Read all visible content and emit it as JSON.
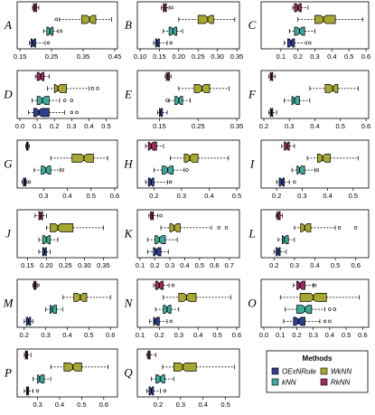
{
  "colors": {
    "RkNN": "#9b2d5e",
    "WkNN": "#a7a632",
    "kNN": "#3ea89a",
    "OExNRule": "#2e3f90"
  },
  "legend": {
    "title": "Methods",
    "items": [
      {
        "method": "OExNRule",
        "label": "OExNRule"
      },
      {
        "method": "WkNN",
        "label": "WkNN"
      },
      {
        "method": "kNN",
        "label": "kNN"
      },
      {
        "method": "RkNN",
        "label": "RkNN"
      }
    ]
  },
  "chart_data": {
    "type": "boxplot",
    "methods_order_top_to_bottom": [
      "RkNN",
      "WkNN",
      "kNN",
      "OExNRule"
    ],
    "panels": [
      {
        "label": "A",
        "xlim": [
          0.15,
          0.45
        ],
        "ticks": [
          "0.15",
          "0.25",
          "0.35",
          "0.45"
        ],
        "boxes": [
          {
            "method": "RkNN",
            "min": 0.19,
            "q1": 0.193,
            "median": 0.197,
            "q3": 0.203,
            "max": 0.21,
            "outliers": []
          },
          {
            "method": "WkNN",
            "min": 0.275,
            "q1": 0.345,
            "median": 0.37,
            "q3": 0.39,
            "max": 0.44,
            "outliers": [
              0.265
            ]
          },
          {
            "method": "kNN",
            "min": 0.225,
            "q1": 0.235,
            "median": 0.245,
            "q3": 0.255,
            "max": 0.27,
            "outliers": [
              0.28
            ]
          },
          {
            "method": "OExNRule",
            "min": 0.18,
            "q1": 0.185,
            "median": 0.192,
            "q3": 0.2,
            "max": 0.23,
            "outliers": [
              0.24
            ]
          }
        ]
      },
      {
        "label": "B",
        "xlim": [
          0.1,
          0.35
        ],
        "ticks": [
          "0.10",
          "0.15",
          "0.20",
          "0.25",
          "0.30",
          "0.35"
        ],
        "boxes": [
          {
            "method": "RkNN",
            "min": 0.155,
            "q1": 0.16,
            "median": 0.164,
            "q3": 0.168,
            "max": 0.175,
            "outliers": [
              0.182
            ]
          },
          {
            "method": "WkNN",
            "min": 0.2,
            "q1": 0.25,
            "median": 0.275,
            "q3": 0.29,
            "max": 0.345,
            "outliers": []
          },
          {
            "method": "kNN",
            "min": 0.16,
            "q1": 0.175,
            "median": 0.185,
            "q3": 0.195,
            "max": 0.21,
            "outliers": []
          },
          {
            "method": "OExNRule",
            "min": 0.135,
            "q1": 0.14,
            "median": 0.145,
            "q3": 0.15,
            "max": 0.17,
            "outliers": [
              0.18
            ]
          }
        ]
      },
      {
        "label": "C",
        "xlim": [
          0.0,
          0.6
        ],
        "ticks": [
          "0.1",
          "0.2",
          "0.3",
          "0.4",
          "0.5",
          "0.6"
        ],
        "boxes": [
          {
            "method": "RkNN",
            "min": 0.17,
            "q1": 0.18,
            "median": 0.2,
            "q3": 0.22,
            "max": 0.26,
            "outliers": []
          },
          {
            "method": "WkNN",
            "min": 0.2,
            "q1": 0.3,
            "median": 0.35,
            "q3": 0.42,
            "max": 0.58,
            "outliers": []
          },
          {
            "method": "kNN",
            "min": 0.15,
            "q1": 0.18,
            "median": 0.21,
            "q3": 0.24,
            "max": 0.3,
            "outliers": []
          },
          {
            "method": "OExNRule",
            "min": 0.12,
            "q1": 0.14,
            "median": 0.16,
            "q3": 0.18,
            "max": 0.25,
            "outliers": [
              0.27
            ]
          }
        ]
      },
      {
        "label": "D",
        "xlim": [
          0.0,
          0.55
        ],
        "ticks": [
          "0.0",
          "0.1",
          "0.2",
          "0.3",
          "0.4",
          "0.5"
        ],
        "boxes": [
          {
            "method": "RkNN",
            "min": 0.09,
            "q1": 0.1,
            "median": 0.12,
            "q3": 0.14,
            "max": 0.17,
            "outliers": []
          },
          {
            "method": "WkNN",
            "min": 0.16,
            "q1": 0.2,
            "median": 0.22,
            "q3": 0.27,
            "max": 0.4,
            "outliers": [
              0.42,
              0.45
            ]
          },
          {
            "method": "kNN",
            "min": 0.07,
            "q1": 0.1,
            "median": 0.13,
            "q3": 0.17,
            "max": 0.23,
            "outliers": [
              0.26,
              0.3
            ]
          },
          {
            "method": "OExNRule",
            "min": 0.05,
            "q1": 0.08,
            "median": 0.11,
            "q3": 0.17,
            "max": 0.26,
            "outliers": [
              0.3,
              0.33
            ]
          }
        ]
      },
      {
        "label": "E",
        "xlim": [
          0.1,
          0.35
        ],
        "ticks": [
          "0.15",
          "0.25",
          "0.35"
        ],
        "boxes": [
          {
            "method": "RkNN",
            "min": 0.165,
            "q1": 0.168,
            "median": 0.172,
            "q3": 0.176,
            "max": 0.18,
            "outliers": []
          },
          {
            "method": "WkNN",
            "min": 0.2,
            "q1": 0.24,
            "median": 0.26,
            "q3": 0.28,
            "max": 0.33,
            "outliers": []
          },
          {
            "method": "kNN",
            "min": 0.175,
            "q1": 0.19,
            "median": 0.2,
            "q3": 0.21,
            "max": 0.23,
            "outliers": [
              0.17
            ]
          },
          {
            "method": "OExNRule",
            "min": 0.145,
            "q1": 0.15,
            "median": 0.153,
            "q3": 0.158,
            "max": 0.17,
            "outliers": []
          }
        ]
      },
      {
        "label": "F",
        "xlim": [
          0.2,
          0.6
        ],
        "ticks": [
          "0.2",
          "0.3",
          "0.4",
          "0.5",
          "0.6"
        ],
        "boxes": [
          {
            "method": "RkNN",
            "min": 0.22,
            "q1": 0.225,
            "median": 0.23,
            "q3": 0.235,
            "max": 0.245,
            "outliers": []
          },
          {
            "method": "WkNN",
            "min": 0.38,
            "q1": 0.44,
            "median": 0.47,
            "q3": 0.49,
            "max": 0.57,
            "outliers": []
          },
          {
            "method": "kNN",
            "min": 0.28,
            "q1": 0.31,
            "median": 0.32,
            "q3": 0.34,
            "max": 0.38,
            "outliers": []
          },
          {
            "method": "OExNRule",
            "min": 0.22,
            "q1": 0.225,
            "median": 0.23,
            "q3": 0.235,
            "max": 0.25,
            "outliers": []
          }
        ]
      },
      {
        "label": "G",
        "xlim": [
          0.2,
          0.6
        ],
        "ticks": [
          "0.3",
          "0.4",
          "0.5",
          "0.6"
        ],
        "boxes": [
          {
            "method": "RkNN",
            "min": 0.225,
            "q1": 0.228,
            "median": 0.232,
            "q3": 0.235,
            "max": 0.24,
            "outliers": []
          },
          {
            "method": "WkNN",
            "min": 0.33,
            "q1": 0.42,
            "median": 0.47,
            "q3": 0.51,
            "max": 0.57,
            "outliers": []
          },
          {
            "method": "kNN",
            "min": 0.26,
            "q1": 0.29,
            "median": 0.31,
            "q3": 0.33,
            "max": 0.37,
            "outliers": [
              0.38
            ]
          },
          {
            "method": "OExNRule",
            "min": 0.21,
            "q1": 0.215,
            "median": 0.22,
            "q3": 0.225,
            "max": 0.23,
            "outliers": [
              0.24
            ]
          }
        ]
      },
      {
        "label": "H",
        "xlim": [
          0.15,
          0.5
        ],
        "ticks": [
          "0.2",
          "0.3",
          "0.4",
          "0.5"
        ],
        "boxes": [
          {
            "method": "RkNN",
            "min": 0.17,
            "q1": 0.18,
            "median": 0.19,
            "q3": 0.21,
            "max": 0.235,
            "outliers": []
          },
          {
            "method": "WkNN",
            "min": 0.26,
            "q1": 0.31,
            "median": 0.33,
            "q3": 0.36,
            "max": 0.47,
            "outliers": []
          },
          {
            "method": "kNN",
            "min": 0.2,
            "q1": 0.23,
            "median": 0.25,
            "q3": 0.27,
            "max": 0.31,
            "outliers": [
              0.32
            ]
          },
          {
            "method": "OExNRule",
            "min": 0.17,
            "q1": 0.18,
            "median": 0.19,
            "q3": 0.2,
            "max": 0.25,
            "outliers": [
              0.26
            ]
          }
        ]
      },
      {
        "label": "I",
        "xlim": [
          0.15,
          0.55
        ],
        "ticks": [
          "0.2",
          "0.3",
          "0.4",
          "0.5"
        ],
        "boxes": [
          {
            "method": "RkNN",
            "min": 0.22,
            "q1": 0.23,
            "median": 0.24,
            "q3": 0.25,
            "max": 0.27,
            "outliers": []
          },
          {
            "method": "WkNN",
            "min": 0.32,
            "q1": 0.36,
            "median": 0.38,
            "q3": 0.41,
            "max": 0.52,
            "outliers": []
          },
          {
            "method": "kNN",
            "min": 0.26,
            "q1": 0.28,
            "median": 0.29,
            "q3": 0.31,
            "max": 0.35,
            "outliers": [
              0.36
            ]
          },
          {
            "method": "OExNRule",
            "min": 0.2,
            "q1": 0.21,
            "median": 0.22,
            "q3": 0.23,
            "max": 0.25,
            "outliers": [
              0.27
            ]
          }
        ]
      },
      {
        "label": "J",
        "xlim": [
          0.13,
          0.38
        ],
        "ticks": [
          "0.15",
          "0.20",
          "0.25",
          "0.30",
          "0.35"
        ],
        "boxes": [
          {
            "method": "RkNN",
            "min": 0.17,
            "q1": 0.18,
            "median": 0.185,
            "q3": 0.19,
            "max": 0.2,
            "outliers": []
          },
          {
            "method": "WkNN",
            "min": 0.2,
            "q1": 0.21,
            "median": 0.23,
            "q3": 0.27,
            "max": 0.35,
            "outliers": []
          },
          {
            "method": "kNN",
            "min": 0.18,
            "q1": 0.19,
            "median": 0.2,
            "q3": 0.21,
            "max": 0.23,
            "outliers": []
          },
          {
            "method": "OExNRule",
            "min": 0.18,
            "q1": 0.19,
            "median": 0.195,
            "q3": 0.2,
            "max": 0.21,
            "outliers": []
          }
        ]
      },
      {
        "label": "K",
        "xlim": [
          0.1,
          0.75
        ],
        "ticks": [
          "0.1",
          "0.2",
          "0.3",
          "0.4",
          "0.5",
          "0.6",
          "0.7"
        ],
        "boxes": [
          {
            "method": "RkNN",
            "min": 0.16,
            "q1": 0.17,
            "median": 0.18,
            "q3": 0.19,
            "max": 0.22,
            "outliers": [
              0.24
            ]
          },
          {
            "method": "WkNN",
            "min": 0.24,
            "q1": 0.3,
            "median": 0.33,
            "q3": 0.37,
            "max": 0.58,
            "outliers": [
              0.63,
              0.68
            ]
          },
          {
            "method": "kNN",
            "min": 0.15,
            "q1": 0.2,
            "median": 0.23,
            "q3": 0.27,
            "max": 0.35,
            "outliers": []
          },
          {
            "method": "OExNRule",
            "min": 0.15,
            "q1": 0.19,
            "median": 0.21,
            "q3": 0.24,
            "max": 0.29,
            "outliers": []
          }
        ]
      },
      {
        "label": "L",
        "xlim": [
          0.15,
          0.65
        ],
        "ticks": [
          "0.2",
          "0.3",
          "0.4",
          "0.5",
          "0.6"
        ],
        "boxes": [
          {
            "method": "RkNN",
            "min": 0.21,
            "q1": 0.215,
            "median": 0.22,
            "q3": 0.23,
            "max": 0.24,
            "outliers": []
          },
          {
            "method": "WkNN",
            "min": 0.3,
            "q1": 0.33,
            "median": 0.35,
            "q3": 0.38,
            "max": 0.5,
            "outliers": [
              0.52,
              0.6
            ]
          },
          {
            "method": "kNN",
            "min": 0.22,
            "q1": 0.24,
            "median": 0.25,
            "q3": 0.27,
            "max": 0.3,
            "outliers": []
          },
          {
            "method": "OExNRule",
            "min": 0.2,
            "q1": 0.21,
            "median": 0.22,
            "q3": 0.23,
            "max": 0.26,
            "outliers": []
          }
        ]
      },
      {
        "label": "M",
        "xlim": [
          0.18,
          0.62
        ],
        "ticks": [
          "0.2",
          "0.3",
          "0.4",
          "0.5",
          "0.6"
        ],
        "boxes": [
          {
            "method": "RkNN",
            "min": 0.24,
            "q1": 0.245,
            "median": 0.25,
            "q3": 0.255,
            "max": 0.26,
            "outliers": [
              0.265
            ]
          },
          {
            "method": "WkNN",
            "min": 0.38,
            "q1": 0.43,
            "median": 0.46,
            "q3": 0.49,
            "max": 0.6,
            "outliers": []
          },
          {
            "method": "kNN",
            "min": 0.3,
            "q1": 0.32,
            "median": 0.33,
            "q3": 0.35,
            "max": 0.38,
            "outliers": []
          },
          {
            "method": "OExNRule",
            "min": 0.2,
            "q1": 0.21,
            "median": 0.22,
            "q3": 0.23,
            "max": 0.24,
            "outliers": []
          }
        ]
      },
      {
        "label": "N",
        "xlim": [
          0.1,
          0.6
        ],
        "ticks": [
          "0.1",
          "0.2",
          "0.3",
          "0.4",
          "0.5",
          "0.6"
        ],
        "boxes": [
          {
            "method": "RkNN",
            "min": 0.17,
            "q1": 0.18,
            "median": 0.2,
            "q3": 0.22,
            "max": 0.25,
            "outliers": [
              0.27
            ]
          },
          {
            "method": "WkNN",
            "min": 0.22,
            "q1": 0.3,
            "median": 0.34,
            "q3": 0.39,
            "max": 0.57,
            "outliers": []
          },
          {
            "method": "kNN",
            "min": 0.18,
            "q1": 0.22,
            "median": 0.24,
            "q3": 0.26,
            "max": 0.3,
            "outliers": []
          },
          {
            "method": "OExNRule",
            "min": 0.15,
            "q1": 0.17,
            "median": 0.18,
            "q3": 0.2,
            "max": 0.24,
            "outliers": [
              0.26
            ]
          }
        ]
      },
      {
        "label": "O",
        "xlim": [
          0.0,
          0.62
        ],
        "ticks": [
          "0.0",
          "0.1",
          "0.2",
          "0.3",
          "0.4",
          "0.5",
          "0.6"
        ],
        "boxes": [
          {
            "method": "RkNN",
            "min": 0.18,
            "q1": 0.2,
            "median": 0.22,
            "q3": 0.25,
            "max": 0.3,
            "outliers": [
              0.31
            ]
          },
          {
            "method": "WkNN",
            "min": 0.1,
            "q1": 0.22,
            "median": 0.3,
            "q3": 0.38,
            "max": 0.58,
            "outliers": []
          },
          {
            "method": "kNN",
            "min": 0.13,
            "q1": 0.2,
            "median": 0.25,
            "q3": 0.29,
            "max": 0.37,
            "outliers": [
              0.4,
              0.43
            ]
          },
          {
            "method": "OExNRule",
            "min": 0.12,
            "q1": 0.18,
            "median": 0.21,
            "q3": 0.25,
            "max": 0.34,
            "outliers": [
              0.37,
              0.4
            ]
          }
        ]
      },
      {
        "label": "P",
        "xlim": [
          0.22,
          0.65
        ],
        "ticks": [
          "0.3",
          "0.4",
          "0.5",
          "0.6"
        ],
        "boxes": [
          {
            "method": "RkNN",
            "min": 0.24,
            "q1": 0.245,
            "median": 0.25,
            "q3": 0.255,
            "max": 0.27,
            "outliers": []
          },
          {
            "method": "WkNN",
            "min": 0.36,
            "q1": 0.42,
            "median": 0.46,
            "q3": 0.5,
            "max": 0.62,
            "outliers": []
          },
          {
            "method": "kNN",
            "min": 0.28,
            "q1": 0.3,
            "median": 0.31,
            "q3": 0.33,
            "max": 0.36,
            "outliers": []
          },
          {
            "method": "OExNRule",
            "min": 0.24,
            "q1": 0.25,
            "median": 0.255,
            "q3": 0.26,
            "max": 0.28,
            "outliers": [
              0.3
            ]
          }
        ]
      },
      {
        "label": "Q",
        "xlim": [
          0.12,
          0.55
        ],
        "ticks": [
          "0.2",
          "0.3",
          "0.4",
          "0.5"
        ],
        "boxes": [
          {
            "method": "RkNN",
            "min": 0.15,
            "q1": 0.155,
            "median": 0.16,
            "q3": 0.165,
            "max": 0.19,
            "outliers": []
          },
          {
            "method": "WkNN",
            "min": 0.22,
            "q1": 0.27,
            "median": 0.31,
            "q3": 0.37,
            "max": 0.54,
            "outliers": []
          },
          {
            "method": "kNN",
            "min": 0.17,
            "q1": 0.19,
            "median": 0.21,
            "q3": 0.23,
            "max": 0.27,
            "outliers": []
          },
          {
            "method": "OExNRule",
            "min": 0.15,
            "q1": 0.16,
            "median": 0.17,
            "q3": 0.18,
            "max": 0.21,
            "outliers": [
              0.23
            ]
          }
        ]
      }
    ]
  }
}
